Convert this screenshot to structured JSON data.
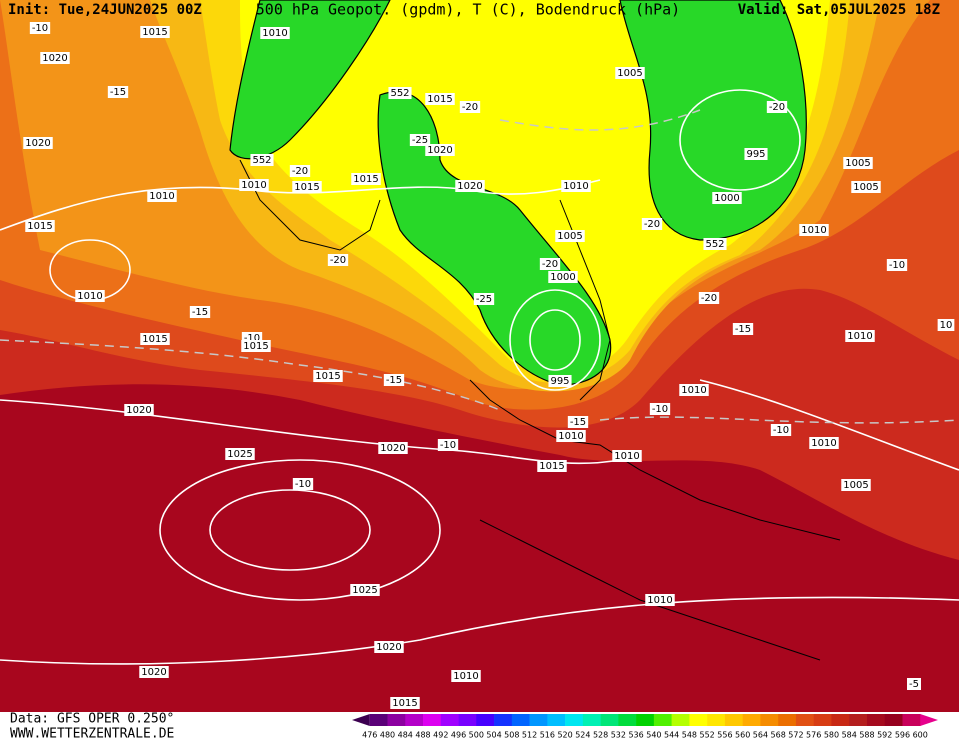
{
  "header": {
    "init": "Init: Tue,24JUN2025 00Z",
    "title": "500 hPa Geopot. (gpdm), T (C), Bodendruck (hPa)",
    "valid": "Valid: Sat,05JUL2025 18Z"
  },
  "footer": {
    "source": "Data: GFS OPER 0.250°",
    "site": "WWW.WETTERZENTRALE.DE"
  },
  "contour_labels": [
    "-10",
    "1015",
    "1010",
    "1020",
    "-15",
    "1020",
    "552",
    "1015",
    "-20",
    "1005",
    "-20",
    "-25",
    "1020",
    "552",
    "-20",
    "1010",
    "1015",
    "1015",
    "1020",
    "1010",
    "995",
    "1005",
    "1005",
    "1010",
    "1000",
    "1015",
    "-20",
    "1005",
    "1010",
    "552",
    "-20",
    "-20",
    "1000",
    "-10",
    "1010",
    "-25",
    "-20",
    "-15",
    "-10",
    "1015",
    "1015",
    "-15",
    "1010",
    "10",
    "1015",
    "-15",
    "995",
    "1010",
    "-10",
    "1020",
    "-15",
    "1010",
    "-10",
    "1020",
    "-10",
    "1010",
    "1010",
    "1015",
    "1025",
    "-10",
    "1005",
    "1025",
    "1010",
    "1020",
    "1020",
    "1010",
    "-5",
    "1015"
  ],
  "colorbar": {
    "labels": [
      476,
      480,
      484,
      488,
      492,
      496,
      500,
      504,
      508,
      512,
      516,
      520,
      524,
      528,
      532,
      536,
      540,
      544,
      548,
      552,
      556,
      560,
      564,
      568,
      572,
      576,
      580,
      584,
      588,
      592,
      596,
      600
    ],
    "colors": [
      "#3c0050",
      "#5a0078",
      "#8c00a0",
      "#b400c8",
      "#dc00f0",
      "#a000ff",
      "#7800ff",
      "#4600ff",
      "#1432ff",
      "#0064ff",
      "#0096ff",
      "#00beff",
      "#00e6f0",
      "#00f0b4",
      "#00e678",
      "#00dc3c",
      "#00d200",
      "#50f000",
      "#b4ff00",
      "#ffff00",
      "#ffe600",
      "#ffc800",
      "#ffaa00",
      "#f58c00",
      "#eb6e00",
      "#e15014",
      "#d73c14",
      "#c82814",
      "#b41e1e",
      "#a50a1e",
      "#96001e",
      "#c8005a",
      "#e6008c"
    ]
  }
}
